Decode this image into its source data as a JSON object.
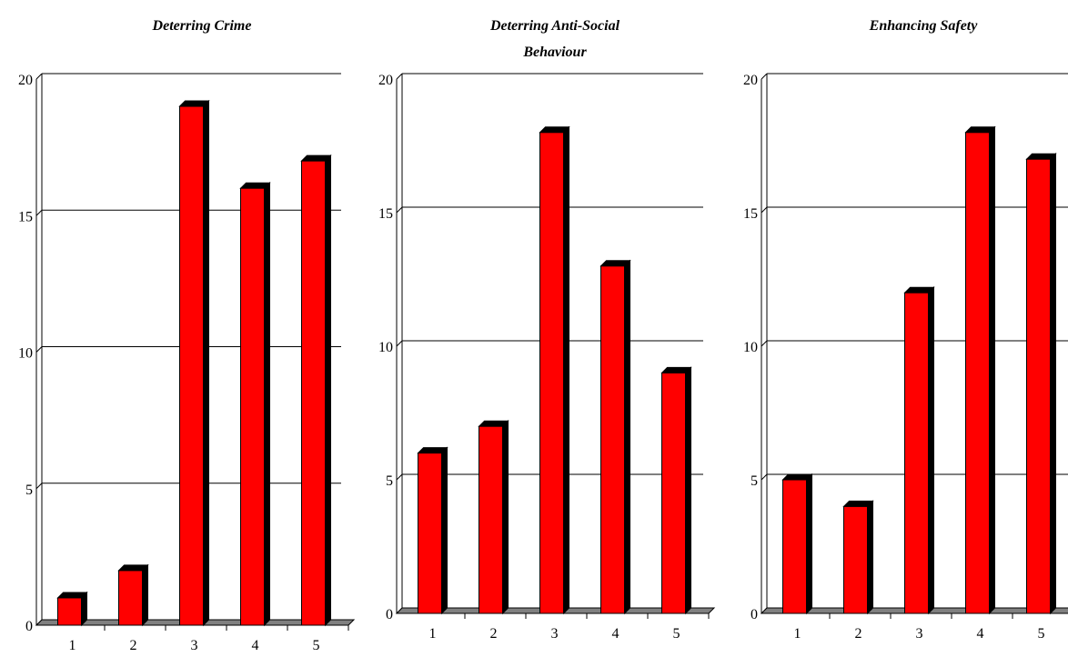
{
  "chart_data": [
    {
      "type": "bar",
      "title": "Deterring Crime",
      "categories": [
        "1",
        "2",
        "3",
        "4",
        "5"
      ],
      "values": [
        1,
        2,
        19,
        16,
        17
      ],
      "ylim": [
        0,
        20
      ],
      "yticks": [
        "0",
        "5",
        "10",
        "15",
        "20"
      ],
      "grid": true,
      "xlabel": "",
      "ylabel": ""
    },
    {
      "type": "bar",
      "title": "Deterring Anti-Social Behaviour",
      "title_lines": [
        "Deterring Anti-Social",
        "Behaviour"
      ],
      "categories": [
        "1",
        "2",
        "3",
        "4",
        "5"
      ],
      "values": [
        6,
        7,
        18,
        13,
        9
      ],
      "ylim": [
        0,
        20
      ],
      "yticks": [
        "0",
        "5",
        "10",
        "15",
        "20"
      ],
      "grid": true,
      "xlabel": "",
      "ylabel": ""
    },
    {
      "type": "bar",
      "title": "Enhancing Safety",
      "categories": [
        "1",
        "2",
        "3",
        "4",
        "5"
      ],
      "values": [
        5,
        4,
        12,
        18,
        17
      ],
      "ylim": [
        0,
        20
      ],
      "yticks": [
        "0",
        "5",
        "10",
        "15",
        "20"
      ],
      "grid": true,
      "xlabel": "",
      "ylabel": ""
    }
  ],
  "colors": {
    "bar": "#ff0000",
    "bar_outline": "#000000",
    "floor": "#808080",
    "grid": "#000000"
  }
}
